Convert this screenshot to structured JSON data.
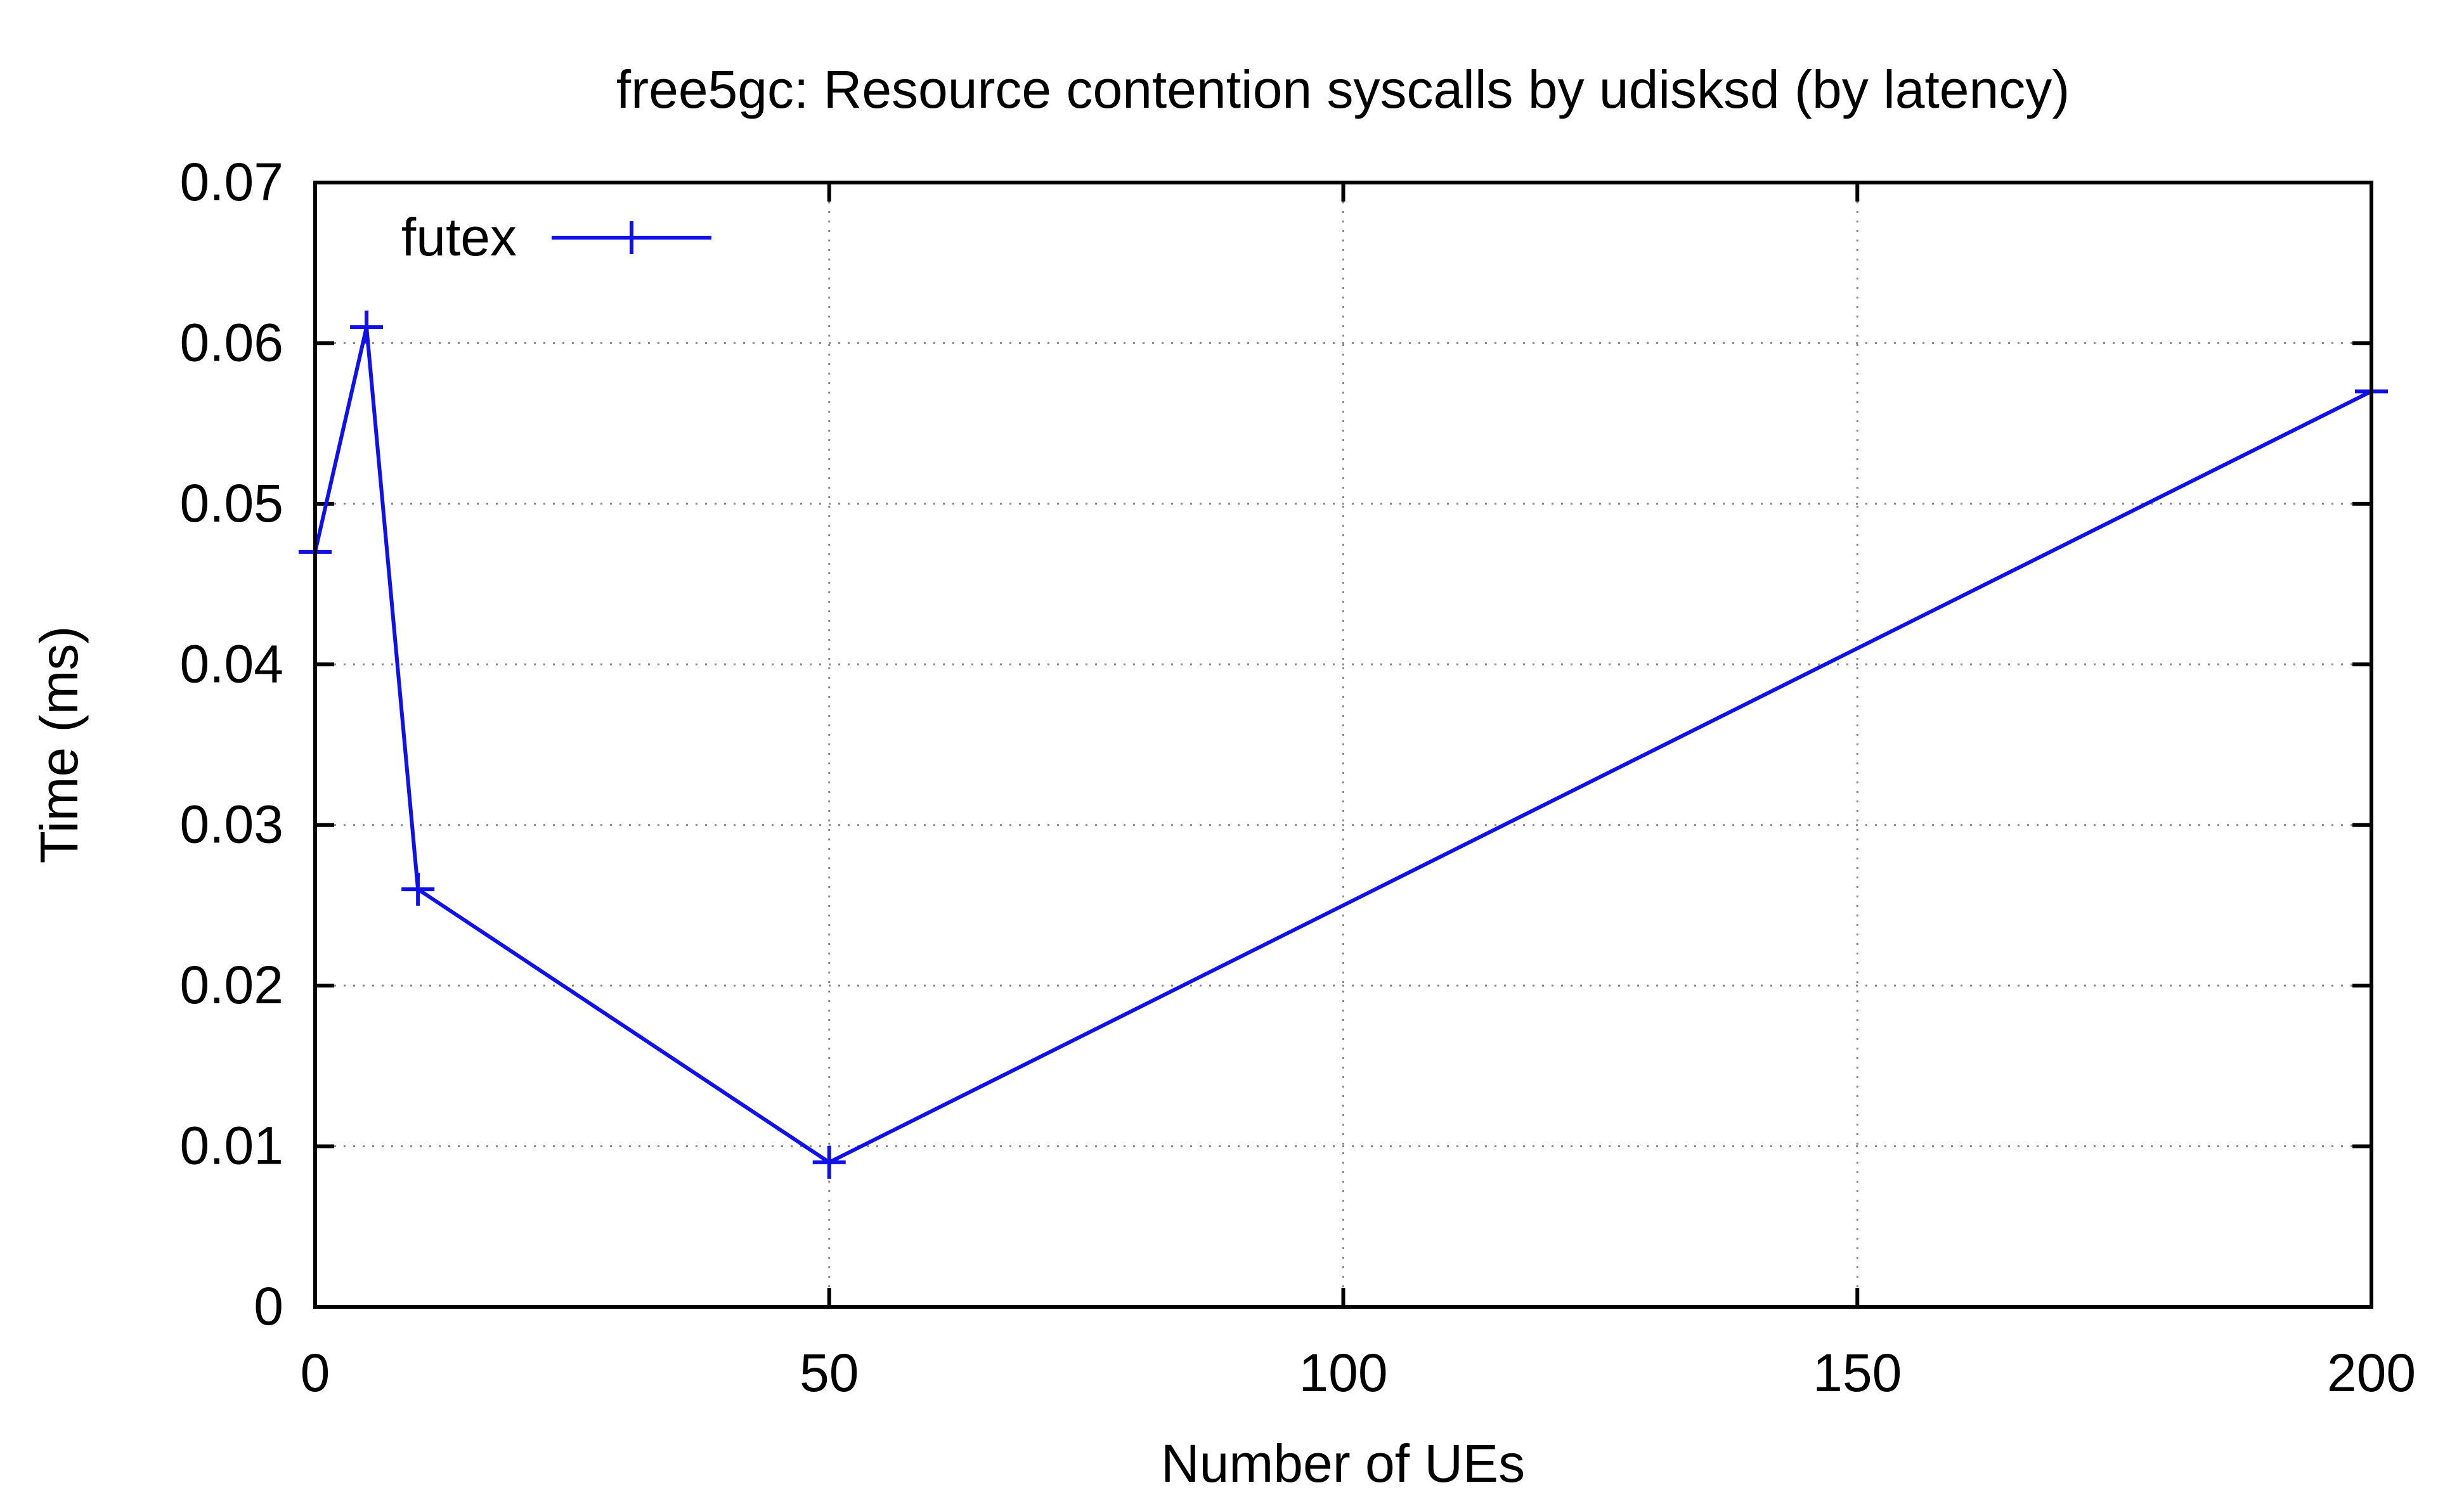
{
  "chart_data": {
    "type": "line",
    "title": "free5gc: Resource contention syscalls by udisksd (by latency)",
    "xlabel": "Number of UEs",
    "ylabel": "Time (ms)",
    "xlim": [
      0,
      200
    ],
    "ylim": [
      0,
      0.07
    ],
    "xticks": [
      0,
      50,
      100,
      150,
      200
    ],
    "xtick_labels": [
      "0",
      "50",
      "100",
      "150",
      "200"
    ],
    "yticks": [
      0,
      0.01,
      0.02,
      0.03,
      0.04,
      0.05,
      0.06,
      0.07
    ],
    "ytick_labels": [
      "0",
      "0.01",
      "0.02",
      "0.03",
      "0.04",
      "0.05",
      "0.06",
      "0.07"
    ],
    "grid": true,
    "legend_position": "top-left",
    "series": [
      {
        "name": "futex",
        "color": "#1010e8",
        "marker": "plus",
        "x": [
          0,
          5,
          10,
          50,
          200
        ],
        "y": [
          0.047,
          0.061,
          0.026,
          0.009,
          0.057
        ]
      }
    ]
  }
}
